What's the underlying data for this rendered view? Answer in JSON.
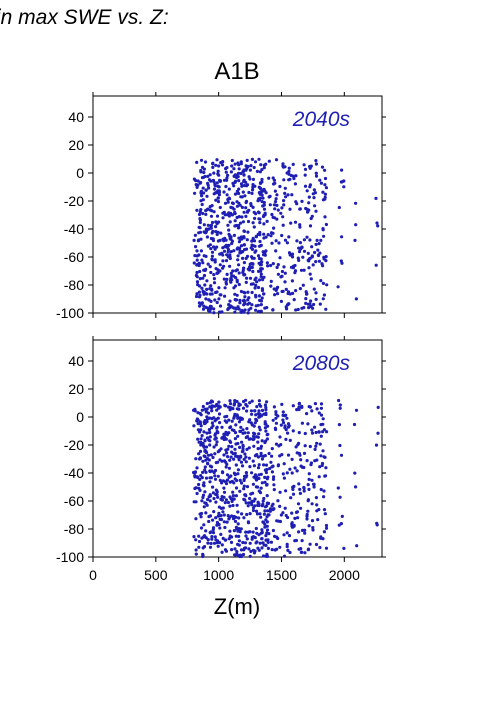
{
  "figure": {
    "title": "in max SWE vs. Z:",
    "scenario": "A1B",
    "xlabel": "Z(m)",
    "point_color": "#1f1fb4"
  },
  "chart_data": [
    {
      "type": "scatter",
      "label": "2040s",
      "xlim": [
        0,
        2300
      ],
      "ylim": [
        -100,
        55
      ],
      "xticks": [
        0,
        500,
        1000,
        1500,
        2000
      ],
      "yticks": [
        -100,
        -80,
        -60,
        -40,
        -20,
        0,
        20,
        40
      ],
      "show_xtick_labels": false,
      "clusters": [
        {
          "x": [
            800,
            840
          ],
          "y": [
            -98,
            8
          ],
          "density": 0.6
        },
        {
          "x": [
            840,
            1380
          ],
          "y": [
            -100,
            10
          ],
          "density": 1.0
        },
        {
          "x": [
            1380,
            1860
          ],
          "y": [
            -98,
            10
          ],
          "density": 0.45
        },
        {
          "x": [
            1950,
            2000
          ],
          "y": [
            -90,
            8
          ],
          "density": 0.2
        },
        {
          "x": [
            2080,
            2100
          ],
          "y": [
            -95,
            5
          ],
          "density": 0.2
        },
        {
          "x": [
            2250,
            2270
          ],
          "y": [
            -88,
            5
          ],
          "density": 0.2
        }
      ]
    },
    {
      "type": "scatter",
      "label": "2080s",
      "xlim": [
        0,
        2300
      ],
      "ylim": [
        -100,
        55
      ],
      "xticks": [
        0,
        500,
        1000,
        1500,
        2000
      ],
      "yticks": [
        -100,
        -80,
        -60,
        -40,
        -20,
        0,
        20,
        40
      ],
      "show_xtick_labels": true,
      "clusters": [
        {
          "x": [
            800,
            840
          ],
          "y": [
            -100,
            20
          ],
          "density": 0.6
        },
        {
          "x": [
            840,
            1400
          ],
          "y": [
            -100,
            12
          ],
          "density": 1.0
        },
        {
          "x": [
            1400,
            1860
          ],
          "y": [
            -100,
            10
          ],
          "density": 0.45
        },
        {
          "x": [
            1950,
            2000
          ],
          "y": [
            -98,
            15
          ],
          "density": 0.2
        },
        {
          "x": [
            2080,
            2100
          ],
          "y": [
            -97,
            10
          ],
          "density": 0.2
        },
        {
          "x": [
            2250,
            2270
          ],
          "y": [
            -95,
            14
          ],
          "density": 0.2
        }
      ]
    }
  ]
}
